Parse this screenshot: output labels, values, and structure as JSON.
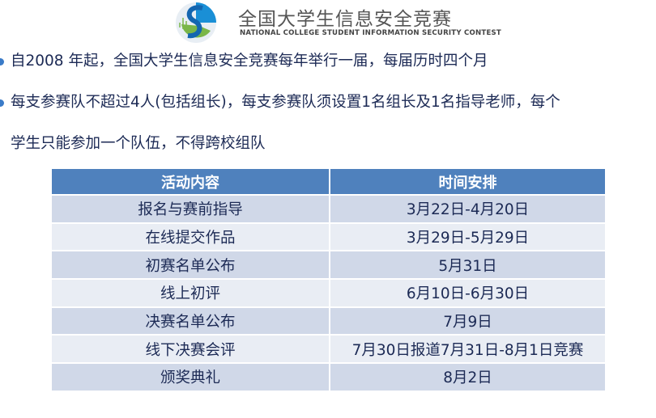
{
  "header": {
    "logo_icon": "contest-s-logo",
    "title_cn": "全国大学生信息安全竞赛",
    "title_en": "NATIONAL COLLEGE STUDENT INFORMATION SECURITY CONTEST"
  },
  "bullets": [
    {
      "lines": [
        "自2008 年起，全国大学生信息安全竞赛每年举行一届，每届历时四个月"
      ]
    },
    {
      "lines": [
        "每支参赛队不超过4人(包括组长)，每支参赛队须设置1名组长及1名指导老师，每个",
        "学生只能参加一个队伍，不得跨校组队"
      ]
    }
  ],
  "table": {
    "headers": [
      "活动内容",
      "时间安排"
    ],
    "rows": [
      [
        "报名与赛前指导",
        "3月22日-4月20日"
      ],
      [
        "在线提交作品",
        "3月29日-5月29日"
      ],
      [
        "初赛名单公布",
        "5月31日"
      ],
      [
        "线上初评",
        "6月10日-6月30日"
      ],
      [
        "决赛名单公布",
        "7月9日"
      ],
      [
        "线下决赛会评",
        "7月30日报道7月31日-8月1日竞赛"
      ],
      [
        "颁奖典礼",
        "8月2日"
      ]
    ]
  },
  "colors": {
    "header_bg": "#4f81bd",
    "row_odd": "#d0d8e8",
    "row_even": "#e9edf4",
    "bullet": "#3a7bc8",
    "text": "#1c2a55"
  }
}
